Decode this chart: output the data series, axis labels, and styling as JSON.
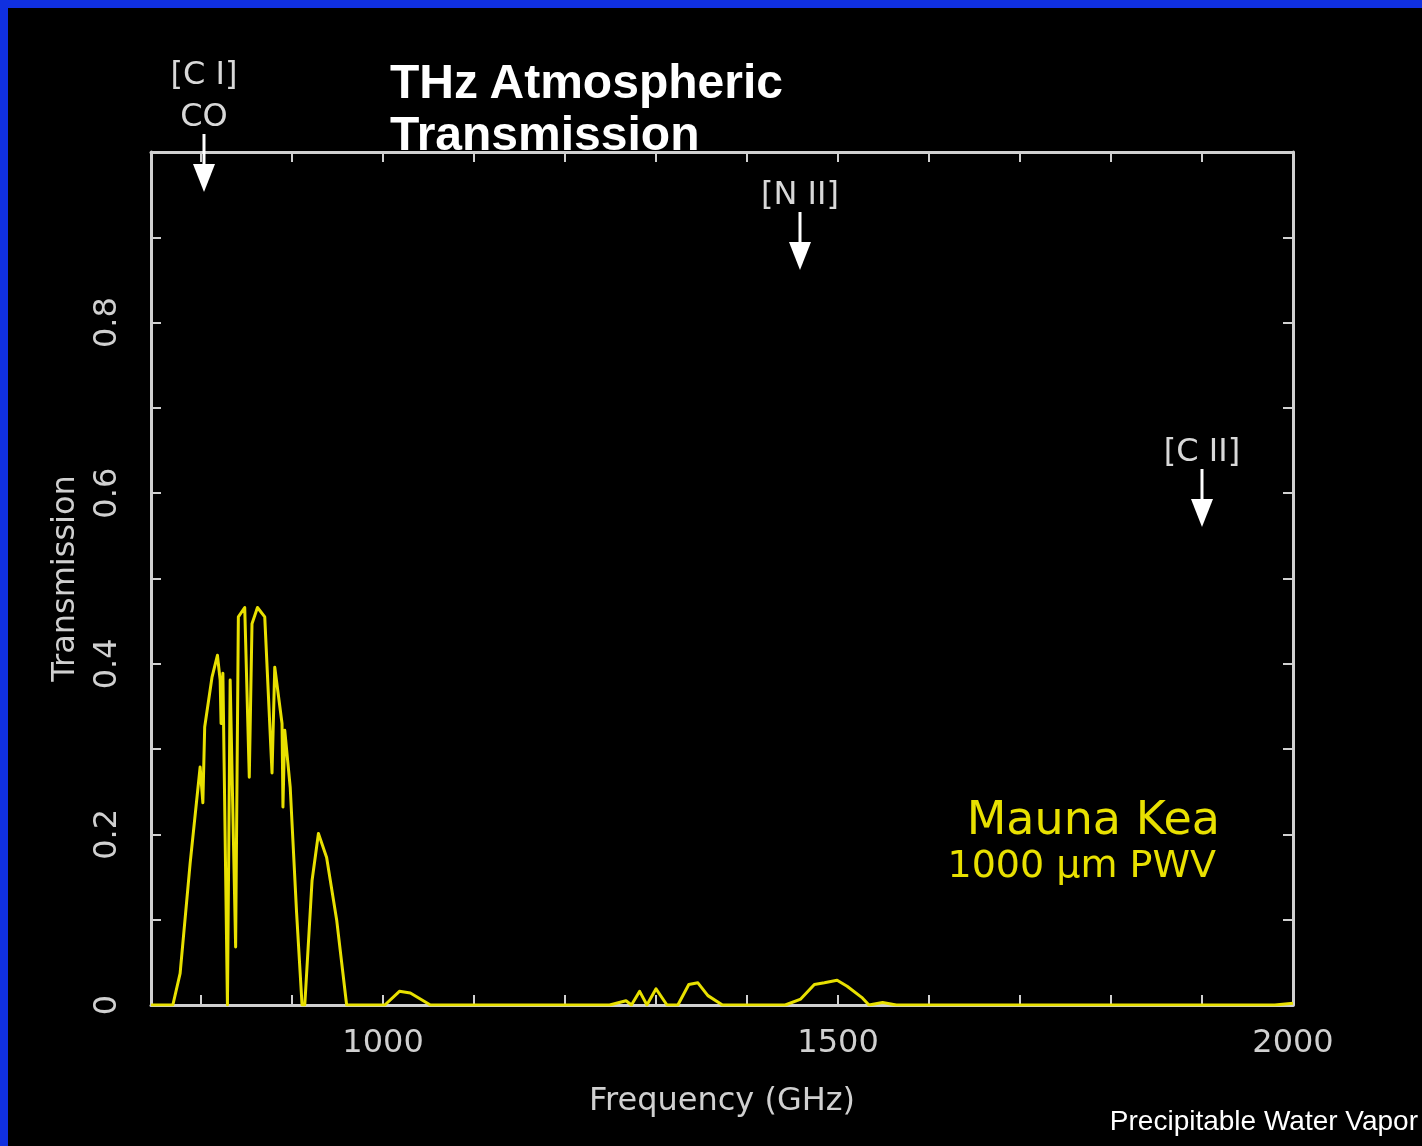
{
  "chart_data": {
    "type": "line",
    "title": "THz Atmospheric Transmission",
    "xlabel": "Frequency (GHz)",
    "ylabel": "Transmission",
    "xlim": [
      745,
      2000
    ],
    "ylim": [
      0,
      1
    ],
    "xticks": [
      {
        "value": 800,
        "label": null
      },
      {
        "value": 900,
        "label": null
      },
      1000,
      {
        "value": 1100,
        "label": null
      },
      {
        "value": 1200,
        "label": null
      },
      {
        "value": 1300,
        "label": null
      },
      {
        "value": 1400,
        "label": null
      },
      1500,
      {
        "value": 1600,
        "label": null
      },
      {
        "value": 1700,
        "label": null
      },
      {
        "value": 1800,
        "label": null
      },
      {
        "value": 1900,
        "label": null
      },
      2000
    ],
    "yticks": [
      0,
      {
        "value": 0.1,
        "label": null
      },
      0.2,
      {
        "value": 0.3,
        "label": null
      },
      0.4,
      {
        "value": 0.5,
        "label": null
      },
      0.6,
      {
        "value": 0.7,
        "label": null
      },
      0.8,
      {
        "value": 0.9,
        "label": null
      }
    ],
    "grid": false,
    "marker": "none",
    "line_style": "solid",
    "series": [
      {
        "name": "Mauna Kea",
        "color": "#e8e000",
        "x": [
          745,
          769,
          777,
          788,
          799,
          802,
          804,
          812,
          818,
          821,
          822,
          824,
          829,
          832,
          838,
          841,
          848,
          853,
          856,
          862,
          870,
          878,
          881,
          889,
          890,
          892,
          898,
          905,
          911,
          914,
          922,
          929,
          938,
          949,
          960,
          1002,
          1018,
          1030,
          1052,
          1249,
          1267,
          1273,
          1282,
          1290,
          1300,
          1312,
          1324,
          1336,
          1346,
          1357,
          1373,
          1442,
          1459,
          1474,
          1485,
          1499,
          1510,
          1526,
          1534,
          1549,
          1564,
          1980,
          2000
        ],
        "values": [
          0,
          0,
          0.037,
          0.166,
          0.279,
          0.237,
          0.326,
          0.384,
          0.41,
          0.381,
          0.33,
          0.389,
          0,
          0.381,
          0.068,
          0.455,
          0.466,
          0.267,
          0.447,
          0.466,
          0.455,
          0.272,
          0.396,
          0.33,
          0.232,
          0.322,
          0.255,
          0.108,
          0,
          0,
          0.146,
          0.201,
          0.173,
          0.1,
          0,
          0,
          0.016,
          0.014,
          0,
          0,
          0.005,
          0,
          0.016,
          0,
          0.019,
          0,
          0,
          0.024,
          0.026,
          0.011,
          0,
          0,
          0.007,
          0.024,
          0.026,
          0.029,
          0.022,
          0.009,
          0,
          0.003,
          0,
          0,
          0.002
        ]
      }
    ],
    "annotations": [
      "[C I]\nCO",
      "[N II]",
      "[C II]",
      "1000 μm PWV",
      "Precipitable Water Vapor"
    ]
  }
}
